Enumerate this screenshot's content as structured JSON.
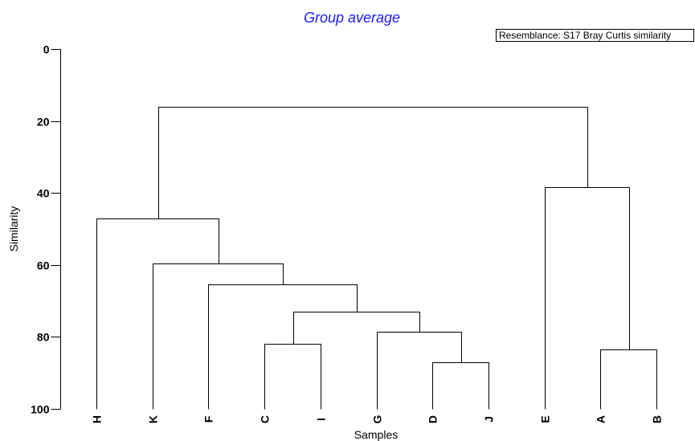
{
  "chart_data": {
    "type": "dendrogram",
    "title": "Group average",
    "legend_text": "Resemblance: S17 Bray Curtis similarity",
    "legend_placement": "top-right",
    "title_color": "#1a1aff",
    "xlabel": "Samples",
    "ylabel": "Similarity",
    "ylim": [
      0,
      100
    ],
    "y_ticks": [
      0,
      20,
      40,
      60,
      80,
      100
    ],
    "y_inverted": true,
    "leaves": [
      "H",
      "K",
      "F",
      "C",
      "I",
      "G",
      "D",
      "J",
      "E",
      "A",
      "B"
    ],
    "merges": [
      {
        "left": "C",
        "right": "I",
        "similarity": 82
      },
      {
        "left": "D",
        "right": "J",
        "similarity": 87
      },
      {
        "left": "G",
        "right": "D+J",
        "similarity": 78.5
      },
      {
        "left": "C+I",
        "right": "G+D+J",
        "similarity": 73
      },
      {
        "left": "F",
        "right": "C+I+G+D+J",
        "similarity": 65.5
      },
      {
        "left": "K",
        "right": "F+C+I+G+D+J",
        "similarity": 59.5
      },
      {
        "left": "H",
        "right": "K+F+C+I+G+D+J",
        "similarity": 47
      },
      {
        "left": "A",
        "right": "B",
        "similarity": 83.5
      },
      {
        "left": "E",
        "right": "A+B",
        "similarity": 38.5
      },
      {
        "left": "H+K+F+C+I+G+D+J",
        "right": "E+A+B",
        "similarity": 16
      }
    ]
  }
}
